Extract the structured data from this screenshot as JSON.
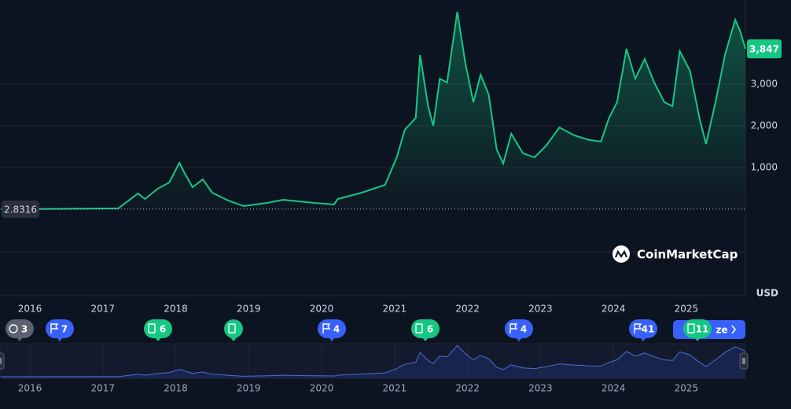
{
  "chart_data": {
    "type": "line",
    "color": "#16c784",
    "grid": true,
    "x": [
      2015.6,
      2015.87,
      2017.21,
      2017.31,
      2017.48,
      2017.58,
      2017.75,
      2017.91,
      2018.05,
      2018.12,
      2018.23,
      2018.37,
      2018.5,
      2018.72,
      2018.93,
      2019.25,
      2019.47,
      2019.9,
      2020.17,
      2020.22,
      2020.55,
      2020.87,
      2021.03,
      2021.14,
      2021.29,
      2021.35,
      2021.46,
      2021.53,
      2021.62,
      2021.72,
      2021.86,
      2021.97,
      2022.08,
      2022.18,
      2022.29,
      2022.4,
      2022.49,
      2022.6,
      2022.76,
      2022.92,
      2023.08,
      2023.26,
      2023.46,
      2023.67,
      2023.83,
      2023.94,
      2024.05,
      2024.18,
      2024.3,
      2024.43,
      2024.56,
      2024.7,
      2024.81,
      2024.91,
      2025.05,
      2025.18,
      2025.27,
      2025.4,
      2025.53,
      2025.67,
      2025.74,
      2025.81
    ],
    "values": [
      2.8316,
      3,
      19,
      150,
      377,
      245,
      490,
      640,
      1113,
      868,
      528,
      717,
      396,
      208,
      75,
      150,
      226,
      150,
      113,
      245,
      396,
      585,
      1245,
      1906,
      2189,
      3698,
      2472,
      2000,
      3132,
      3038,
      4736,
      3509,
      2566,
      3226,
      2755,
      1434,
      1094,
      1811,
      1340,
      1245,
      1528,
      1962,
      1774,
      1660,
      1623,
      2189,
      2566,
      3849,
      3132,
      3604,
      3038,
      2566,
      2472,
      3792,
      3321,
      2189,
      1566,
      2566,
      3698,
      4547,
      4264,
      3847
    ],
    "xlim": [
      2015.59,
      2025.81
    ],
    "xticks": [
      2016,
      2017,
      2018,
      2019,
      2020,
      2021,
      2022,
      2023,
      2024,
      2025
    ],
    "ylim": [
      -1019,
      5019
    ],
    "yticks": [
      {
        "value": 1000,
        "label": "1,000"
      },
      {
        "value": 2000,
        "label": "2,000"
      },
      {
        "value": 3000,
        "label": "3,000"
      }
    ],
    "start_value": 2.8316,
    "current_value": {
      "value": 3847,
      "label": "3,847"
    },
    "currency": "USD",
    "brand": "CoinMarketCap",
    "events": [
      3,
      7,
      6,
      null,
      4,
      6,
      4,
      41,
      11
    ],
    "customize": "ze"
  }
}
